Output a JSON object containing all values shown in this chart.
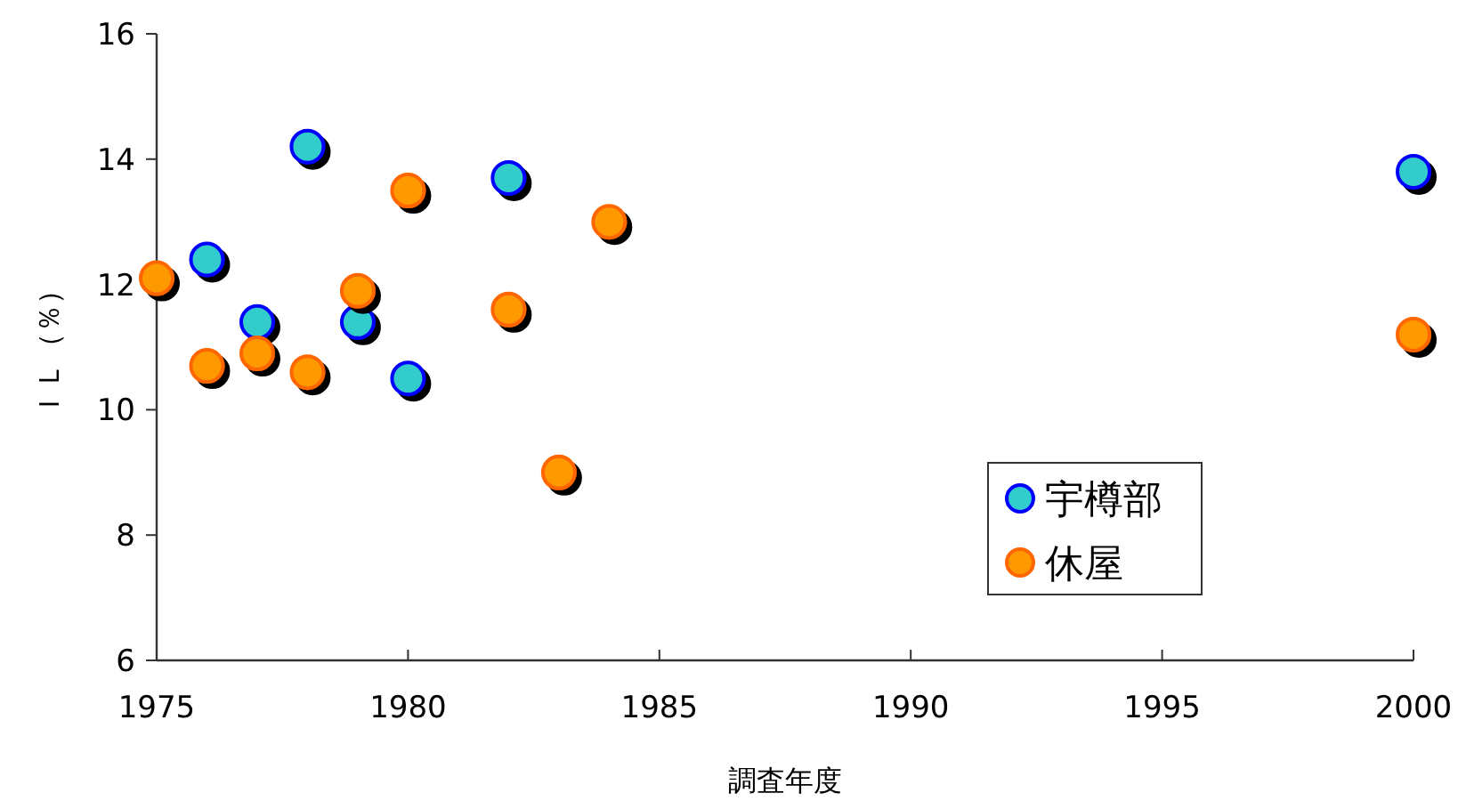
{
  "chart_data": {
    "type": "scatter",
    "xlabel": "調査年度",
    "ylabel": "ＩＬ（％）",
    "xlim": [
      1975,
      2000
    ],
    "xticks": [
      1975,
      1980,
      1985,
      1990,
      1995,
      2000
    ],
    "ylim": [
      6,
      16
    ],
    "yticks": [
      6,
      8,
      10,
      12,
      14,
      16
    ],
    "grid": false,
    "legend": "bottom right",
    "marker": "circle",
    "series": [
      {
        "name": "宇樽部",
        "color": "#33cccc",
        "x": [
          1976,
          1977,
          1978,
          1979,
          1980,
          1982,
          2000
        ],
        "values": [
          12.4,
          11.4,
          14.2,
          11.4,
          10.5,
          13.7,
          13.8
        ]
      },
      {
        "name": "休屋",
        "color": "#ff9900",
        "x": [
          1975,
          1976,
          1977,
          1978,
          1979,
          1980,
          1982,
          1983,
          1984,
          2000
        ],
        "values": [
          12.1,
          10.7,
          10.9,
          10.6,
          11.9,
          13.5,
          11.6,
          9.0,
          13.0,
          11.2
        ]
      }
    ]
  }
}
